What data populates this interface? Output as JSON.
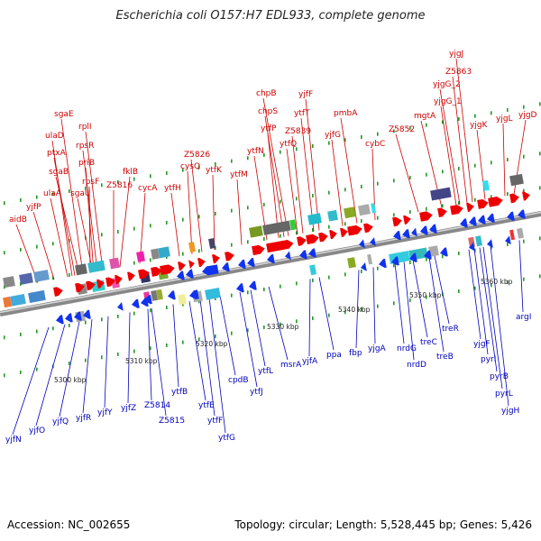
{
  "title": "Escherichia coli O157:H7 EDL933, complete genome",
  "footer": {
    "accession": "Accession: NC_002655",
    "topology": "Topology: circular; Length: 5,528,445 bp; Genes: 5,426"
  },
  "colors": {
    "forward": "#ee0000",
    "reverse": "#1133ee",
    "forward_label": "#cc0000",
    "reverse_label": "#0000bb",
    "axis": "#888888",
    "tick": "#229922"
  },
  "ruler": [
    {
      "label": "5300 kbp"
    },
    {
      "label": "5310 kbp"
    },
    {
      "label": "5320 kbp"
    },
    {
      "label": "5330 kbp"
    },
    {
      "label": "5340 kbp"
    },
    {
      "label": "5350 kbp"
    },
    {
      "label": "5360 kbp"
    }
  ],
  "forward_labels": [
    "aidB",
    "yjfP",
    "ulaA",
    "sgaB",
    "ptxA",
    "ulaD",
    "sgaE",
    "sgaU",
    "rpsF",
    "priB",
    "rpsR",
    "rplI",
    "Z5816",
    "fklB",
    "cycA",
    "ytfH",
    "cysQ",
    "Z5826",
    "ytfK",
    "ytfM",
    "ytfN",
    "ytfP",
    "chpS",
    "chpB",
    "ytfQ",
    "Z5839",
    "ytfT",
    "yjfF",
    "yjfG",
    "pmbA",
    "cybC",
    "Z5852",
    "mgtA",
    "yjgG_1",
    "yjgG_2",
    "Z5863",
    "yjgJ",
    "yjgK",
    "yjgL",
    "yjgD"
  ],
  "reverse_labels": [
    "yjfN",
    "yjfO",
    "yjfQ",
    "yjfR",
    "yjfY",
    "yjfZ",
    "Z5814",
    "Z5815",
    "ytfB",
    "ytfE",
    "ytfF",
    "ytfG",
    "cpdB",
    "ytfJ",
    "ytfL",
    "msrA",
    "yjfA",
    "ppa",
    "fbp",
    "yjgA",
    "nrdG",
    "nrdD",
    "treC",
    "treB",
    "treR",
    "yjgF",
    "pyrI",
    "pyrB",
    "pyrL",
    "yjgH",
    "argI"
  ]
}
